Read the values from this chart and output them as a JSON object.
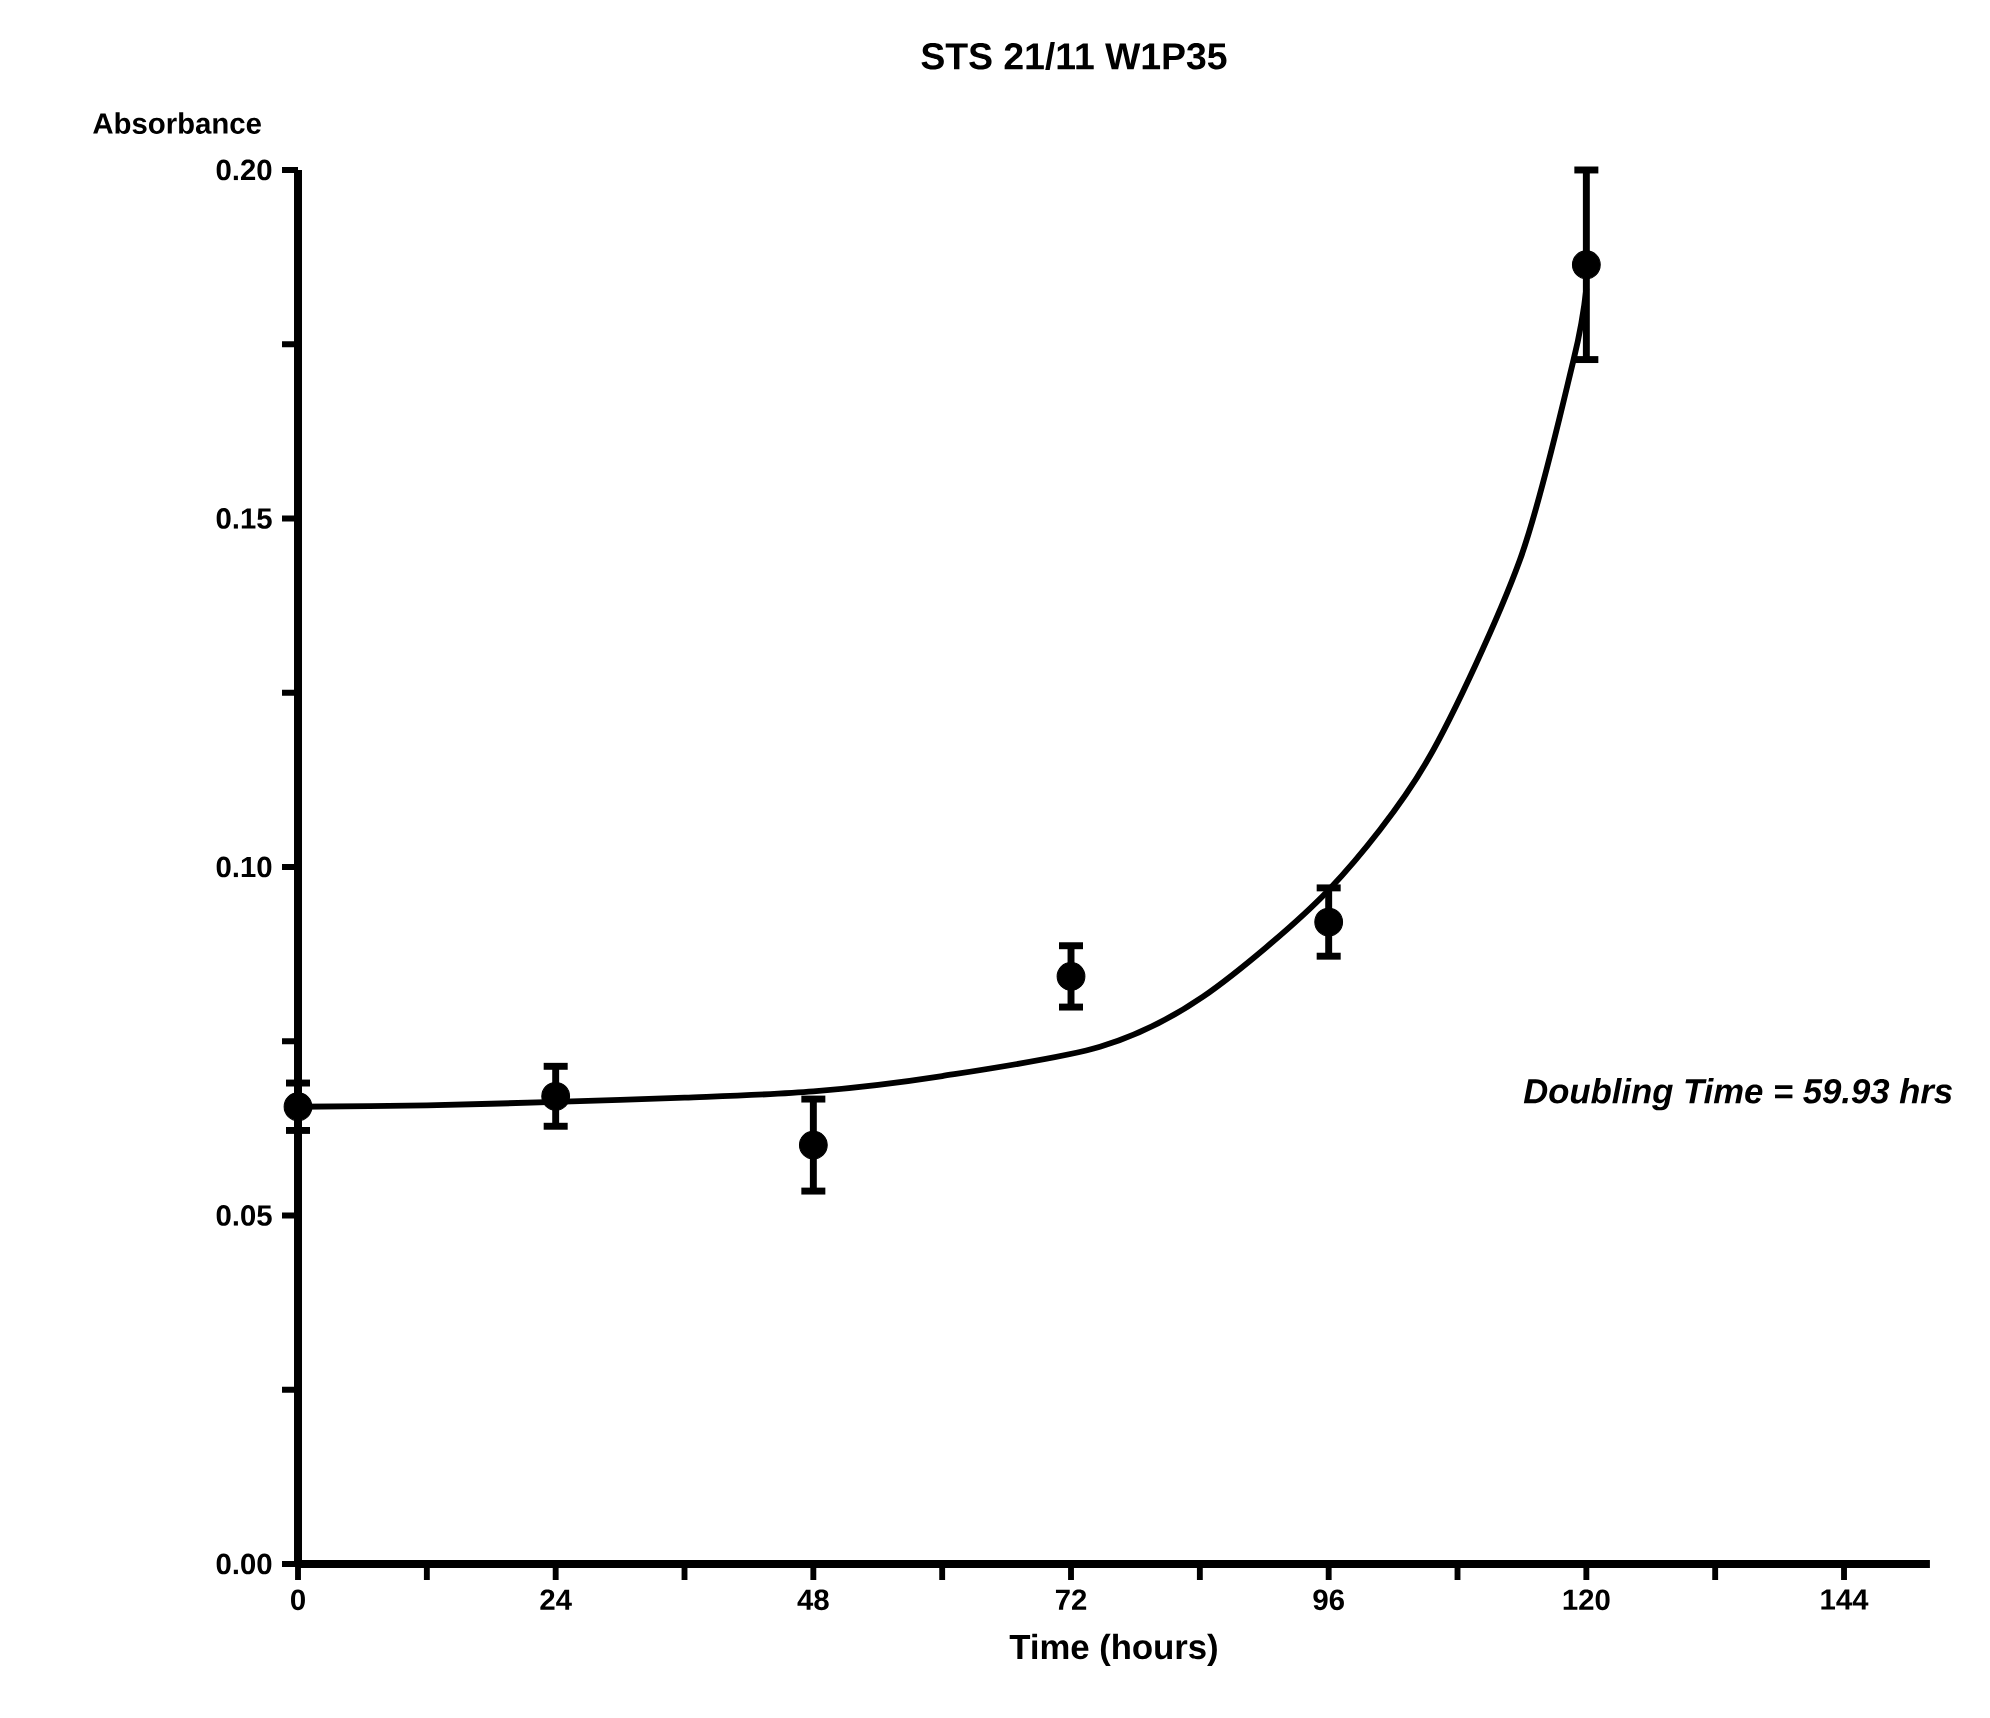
{
  "chart_data": {
    "type": "scatter",
    "title": "STS 21/11 W1P35",
    "xlabel": "Time (hours)",
    "ylabel": "Absorbance",
    "annotations": [
      "Doubling Time = 59.93 hrs"
    ],
    "series": [
      {
        "color": "#000000",
        "marker": "circle",
        "x": [
          0,
          24,
          48,
          72,
          96,
          120
        ],
        "values": [
          0.0656,
          0.0671,
          0.0601,
          0.0843,
          0.0921,
          0.1864
        ],
        "errors": [
          0.0034,
          0.0043,
          0.0066,
          0.0044,
          0.0049,
          0.0136
        ]
      },
      {
        "type": "line",
        "color": "#000000",
        "marker": "none",
        "line_style": "solid",
        "x": [
          0,
          12,
          24,
          36,
          48,
          60,
          74.7,
          84.3,
          96,
          105.2,
          113.8,
          118.8,
          120
        ],
        "values": [
          0.0656,
          0.0658,
          0.0663,
          0.0669,
          0.0678,
          0.07,
          0.0742,
          0.0814,
          0.0967,
          0.1153,
          0.144,
          0.1727,
          0.183
        ]
      }
    ],
    "xlim": [
      0,
      152
    ],
    "ylim": [
      0,
      0.2
    ],
    "xticks": [
      0,
      {
        "value": 12,
        "label": null
      },
      24,
      {
        "value": 36,
        "label": null
      },
      48,
      {
        "value": 60,
        "label": null
      },
      72,
      {
        "value": 84,
        "label": null
      },
      96,
      {
        "value": 108,
        "label": null
      },
      120,
      {
        "value": 132,
        "label": null
      },
      144
    ],
    "yticks": [
      {
        "value": 0,
        "label": "0.00"
      },
      {
        "value": 0.025,
        "label": null
      },
      {
        "value": 0.05,
        "label": "0.05"
      },
      {
        "value": 0.075,
        "label": null
      },
      {
        "value": 0.1,
        "label": "0.10"
      },
      {
        "value": 0.125,
        "label": null
      },
      {
        "value": 0.15,
        "label": "0.15"
      },
      {
        "value": 0.175,
        "label": null
      },
      {
        "value": 0.2,
        "label": "0.20"
      }
    ],
    "grid": false
  }
}
